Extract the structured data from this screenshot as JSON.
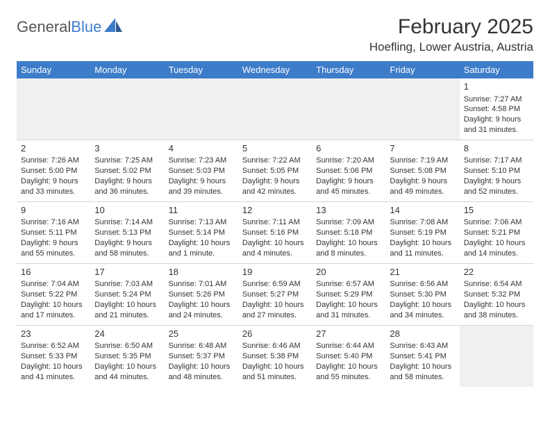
{
  "logo": {
    "text_general": "General",
    "text_blue": "Blue"
  },
  "title": "February 2025",
  "location": "Hoefling, Lower Austria, Austria",
  "colors": {
    "header_bg": "#3d7cc9",
    "header_text": "#ffffff",
    "border": "#cfd6dd",
    "text": "#333333",
    "blank_bg": "#f0f0f0"
  },
  "weekdays": [
    "Sunday",
    "Monday",
    "Tuesday",
    "Wednesday",
    "Thursday",
    "Friday",
    "Saturday"
  ],
  "weeks": [
    [
      {
        "n": "",
        "lines": [
          "",
          "",
          "",
          ""
        ]
      },
      {
        "n": "",
        "lines": [
          "",
          "",
          "",
          ""
        ]
      },
      {
        "n": "",
        "lines": [
          "",
          "",
          "",
          ""
        ]
      },
      {
        "n": "",
        "lines": [
          "",
          "",
          "",
          ""
        ]
      },
      {
        "n": "",
        "lines": [
          "",
          "",
          "",
          ""
        ]
      },
      {
        "n": "",
        "lines": [
          "",
          "",
          "",
          ""
        ]
      },
      {
        "n": "1",
        "lines": [
          "Sunrise: 7:27 AM",
          "Sunset: 4:58 PM",
          "Daylight: 9 hours",
          "and 31 minutes."
        ]
      }
    ],
    [
      {
        "n": "2",
        "lines": [
          "Sunrise: 7:26 AM",
          "Sunset: 5:00 PM",
          "Daylight: 9 hours",
          "and 33 minutes."
        ]
      },
      {
        "n": "3",
        "lines": [
          "Sunrise: 7:25 AM",
          "Sunset: 5:02 PM",
          "Daylight: 9 hours",
          "and 36 minutes."
        ]
      },
      {
        "n": "4",
        "lines": [
          "Sunrise: 7:23 AM",
          "Sunset: 5:03 PM",
          "Daylight: 9 hours",
          "and 39 minutes."
        ]
      },
      {
        "n": "5",
        "lines": [
          "Sunrise: 7:22 AM",
          "Sunset: 5:05 PM",
          "Daylight: 9 hours",
          "and 42 minutes."
        ]
      },
      {
        "n": "6",
        "lines": [
          "Sunrise: 7:20 AM",
          "Sunset: 5:06 PM",
          "Daylight: 9 hours",
          "and 45 minutes."
        ]
      },
      {
        "n": "7",
        "lines": [
          "Sunrise: 7:19 AM",
          "Sunset: 5:08 PM",
          "Daylight: 9 hours",
          "and 49 minutes."
        ]
      },
      {
        "n": "8",
        "lines": [
          "Sunrise: 7:17 AM",
          "Sunset: 5:10 PM",
          "Daylight: 9 hours",
          "and 52 minutes."
        ]
      }
    ],
    [
      {
        "n": "9",
        "lines": [
          "Sunrise: 7:16 AM",
          "Sunset: 5:11 PM",
          "Daylight: 9 hours",
          "and 55 minutes."
        ]
      },
      {
        "n": "10",
        "lines": [
          "Sunrise: 7:14 AM",
          "Sunset: 5:13 PM",
          "Daylight: 9 hours",
          "and 58 minutes."
        ]
      },
      {
        "n": "11",
        "lines": [
          "Sunrise: 7:13 AM",
          "Sunset: 5:14 PM",
          "Daylight: 10 hours",
          "and 1 minute."
        ]
      },
      {
        "n": "12",
        "lines": [
          "Sunrise: 7:11 AM",
          "Sunset: 5:16 PM",
          "Daylight: 10 hours",
          "and 4 minutes."
        ]
      },
      {
        "n": "13",
        "lines": [
          "Sunrise: 7:09 AM",
          "Sunset: 5:18 PM",
          "Daylight: 10 hours",
          "and 8 minutes."
        ]
      },
      {
        "n": "14",
        "lines": [
          "Sunrise: 7:08 AM",
          "Sunset: 5:19 PM",
          "Daylight: 10 hours",
          "and 11 minutes."
        ]
      },
      {
        "n": "15",
        "lines": [
          "Sunrise: 7:06 AM",
          "Sunset: 5:21 PM",
          "Daylight: 10 hours",
          "and 14 minutes."
        ]
      }
    ],
    [
      {
        "n": "16",
        "lines": [
          "Sunrise: 7:04 AM",
          "Sunset: 5:22 PM",
          "Daylight: 10 hours",
          "and 17 minutes."
        ]
      },
      {
        "n": "17",
        "lines": [
          "Sunrise: 7:03 AM",
          "Sunset: 5:24 PM",
          "Daylight: 10 hours",
          "and 21 minutes."
        ]
      },
      {
        "n": "18",
        "lines": [
          "Sunrise: 7:01 AM",
          "Sunset: 5:26 PM",
          "Daylight: 10 hours",
          "and 24 minutes."
        ]
      },
      {
        "n": "19",
        "lines": [
          "Sunrise: 6:59 AM",
          "Sunset: 5:27 PM",
          "Daylight: 10 hours",
          "and 27 minutes."
        ]
      },
      {
        "n": "20",
        "lines": [
          "Sunrise: 6:57 AM",
          "Sunset: 5:29 PM",
          "Daylight: 10 hours",
          "and 31 minutes."
        ]
      },
      {
        "n": "21",
        "lines": [
          "Sunrise: 6:56 AM",
          "Sunset: 5:30 PM",
          "Daylight: 10 hours",
          "and 34 minutes."
        ]
      },
      {
        "n": "22",
        "lines": [
          "Sunrise: 6:54 AM",
          "Sunset: 5:32 PM",
          "Daylight: 10 hours",
          "and 38 minutes."
        ]
      }
    ],
    [
      {
        "n": "23",
        "lines": [
          "Sunrise: 6:52 AM",
          "Sunset: 5:33 PM",
          "Daylight: 10 hours",
          "and 41 minutes."
        ]
      },
      {
        "n": "24",
        "lines": [
          "Sunrise: 6:50 AM",
          "Sunset: 5:35 PM",
          "Daylight: 10 hours",
          "and 44 minutes."
        ]
      },
      {
        "n": "25",
        "lines": [
          "Sunrise: 6:48 AM",
          "Sunset: 5:37 PM",
          "Daylight: 10 hours",
          "and 48 minutes."
        ]
      },
      {
        "n": "26",
        "lines": [
          "Sunrise: 6:46 AM",
          "Sunset: 5:38 PM",
          "Daylight: 10 hours",
          "and 51 minutes."
        ]
      },
      {
        "n": "27",
        "lines": [
          "Sunrise: 6:44 AM",
          "Sunset: 5:40 PM",
          "Daylight: 10 hours",
          "and 55 minutes."
        ]
      },
      {
        "n": "28",
        "lines": [
          "Sunrise: 6:43 AM",
          "Sunset: 5:41 PM",
          "Daylight: 10 hours",
          "and 58 minutes."
        ]
      },
      {
        "n": "",
        "lines": [
          "",
          "",
          "",
          ""
        ]
      }
    ]
  ]
}
